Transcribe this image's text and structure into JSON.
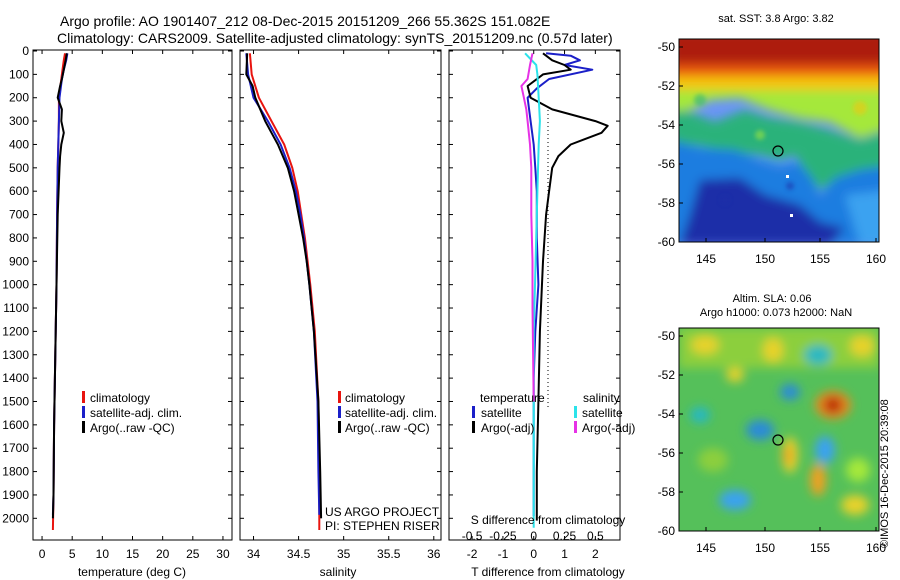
{
  "header": {
    "title_line1": "Argo profile: AO 1901407_212 08-Dec-2015 20151209_266 55.362S 151.082E",
    "title_line2": "Climatology: CARS2009. Satellite-adjusted climatology: synTS_20151209.nc (0.57d later)"
  },
  "colors": {
    "climatology": "#e8140f",
    "satellite": "#1b1fc8",
    "argo": "#000000",
    "satellite_diff_s": "#2be3ea",
    "argo_diff_s": "#e632e6"
  },
  "chart_data": [
    {
      "type": "line",
      "id": "temperature",
      "xlabel": "temperature (deg C)",
      "ylabel": "",
      "xlim": [
        -1.5,
        31.5
      ],
      "ylim": [
        2080,
        0
      ],
      "xticks": [
        0,
        5,
        10,
        15,
        20,
        25,
        30
      ],
      "xticklabels": [
        "0",
        "5",
        "10",
        "15",
        "20",
        "25",
        "30"
      ],
      "yticks": [
        0,
        100,
        200,
        300,
        400,
        500,
        600,
        700,
        800,
        900,
        1000,
        1100,
        1200,
        1300,
        1400,
        1500,
        1600,
        1700,
        1800,
        1900,
        2000
      ],
      "yticklabels": [
        "0",
        "100",
        "200",
        "300",
        "400",
        "500",
        "600",
        "700",
        "800",
        "900",
        "1000",
        "1100",
        "1200",
        "1300",
        "1400",
        "1500",
        "1600",
        "1700",
        "1800",
        "1900",
        "2000"
      ],
      "legend": [
        {
          "label": "climatology",
          "color_key": "climatology"
        },
        {
          "label": "satellite-adj. clim.",
          "color_key": "satellite"
        },
        {
          "label": "Argo(..raw -QC)",
          "color_key": "argo"
        }
      ],
      "series": [
        {
          "color_key": "climatology",
          "y": [
            10,
            40,
            80,
            120,
            200,
            300,
            400,
            500,
            700,
            1000,
            1300,
            1600,
            1900,
            2050
          ],
          "x": [
            3.8,
            3.6,
            3.4,
            3.2,
            2.8,
            2.8,
            2.7,
            2.6,
            2.5,
            2.4,
            2.2,
            2.0,
            1.9,
            1.8
          ]
        },
        {
          "color_key": "satellite",
          "y": [
            10,
            40,
            80,
            120,
            200,
            300,
            400,
            500,
            700,
            1000,
            1300,
            1600,
            1900,
            1985
          ],
          "x": [
            4.2,
            4.0,
            3.6,
            3.3,
            2.9,
            2.8,
            2.7,
            2.6,
            2.5,
            2.4,
            2.2,
            2.0,
            1.9,
            1.8
          ]
        },
        {
          "color_key": "argo",
          "y": [
            10,
            40,
            80,
            120,
            150,
            200,
            250,
            300,
            350,
            400,
            450,
            500,
            700,
            1000,
            1300,
            1600,
            1900,
            2000
          ],
          "x": [
            4.1,
            3.9,
            3.6,
            3.3,
            3.0,
            2.6,
            3.3,
            3.2,
            3.6,
            3.2,
            3.0,
            2.9,
            2.6,
            2.4,
            2.2,
            2.0,
            1.9,
            1.8
          ]
        }
      ]
    },
    {
      "type": "line",
      "id": "salinity",
      "xlabel": "salinity",
      "ylabel": "",
      "xlim": [
        33.85,
        36.08
      ],
      "ylim": [
        2080,
        0
      ],
      "xticks": [
        34,
        34.5,
        35,
        35.5,
        36
      ],
      "xticklabels": [
        "34",
        "34.5",
        "35",
        "35.5",
        "36"
      ],
      "legend": [
        {
          "label": "climatology",
          "color_key": "climatology"
        },
        {
          "label": "satellite-adj. clim.",
          "color_key": "satellite"
        },
        {
          "label": "Argo(..raw -QC)",
          "color_key": "argo"
        }
      ],
      "annotations": [
        "US ARGO PROJECT",
        "PI: STEPHEN RISER"
      ],
      "series": [
        {
          "color_key": "climatology",
          "y": [
            10,
            100,
            200,
            300,
            400,
            500,
            600,
            700,
            800,
            900,
            1000,
            1200,
            1500,
            1800,
            2050
          ],
          "x": [
            33.96,
            33.98,
            34.06,
            34.2,
            34.34,
            34.43,
            34.49,
            34.53,
            34.57,
            34.6,
            34.63,
            34.68,
            34.72,
            34.73,
            34.73
          ]
        },
        {
          "color_key": "satellite",
          "y": [
            10,
            100,
            200,
            300,
            400,
            500,
            600,
            700,
            800,
            900,
            1000,
            1200,
            1500,
            1800,
            1985
          ],
          "x": [
            33.92,
            33.94,
            34.0,
            34.16,
            34.3,
            34.4,
            34.47,
            34.52,
            34.56,
            34.59,
            34.62,
            34.67,
            34.71,
            34.72,
            34.73
          ]
        },
        {
          "color_key": "argo",
          "y": [
            10,
            100,
            150,
            200,
            300,
            350,
            400,
            500,
            600,
            700,
            800,
            900,
            1000,
            1200,
            1500,
            1800,
            2000
          ],
          "x": [
            33.93,
            33.92,
            33.99,
            34.02,
            34.13,
            34.2,
            34.27,
            34.38,
            34.45,
            34.5,
            34.55,
            34.59,
            34.62,
            34.67,
            34.72,
            34.74,
            34.75
          ]
        }
      ]
    },
    {
      "type": "line",
      "id": "difference",
      "xlabel": "T difference from climatology",
      "xlabel_top": "S difference from climatology",
      "xlim": [
        -2.75,
        2.8
      ],
      "ylim": [
        2080,
        0
      ],
      "xticks": [
        -2,
        -1,
        0,
        1,
        2
      ],
      "xticklabels": [
        "-2",
        "-1",
        "0",
        "1",
        "2"
      ],
      "xticks_s": [
        -0.5,
        -0.25,
        0,
        0.25,
        0.5
      ],
      "xticklabels_s": [
        "-0.5",
        "-0.25",
        "0",
        "0.25",
        "0.5"
      ],
      "s_scale": 4,
      "legend_left_title": "temperature",
      "legend_right_title": "salinity",
      "legend": [
        {
          "label": "satellite",
          "color_key": "satellite",
          "group": "temperature"
        },
        {
          "label": "Argo(-adj)",
          "color_key": "argo",
          "group": "temperature"
        },
        {
          "label": "satellite",
          "color_key": "satellite_diff_s",
          "group": "salinity"
        },
        {
          "label": "Argo(-adj)",
          "color_key": "argo_diff_s",
          "group": "salinity"
        }
      ],
      "series": [
        {
          "color_key": "satellite",
          "label": "T satellite",
          "y": [
            10,
            20,
            40,
            60,
            80,
            120,
            160,
            200,
            300,
            400,
            500,
            600,
            800,
            1000,
            1200,
            1400,
            1600,
            1900,
            1990
          ],
          "x": [
            0.4,
            1.2,
            1.5,
            1.0,
            1.9,
            0.5,
            0.1,
            -0.2,
            -0.1,
            0.0,
            0.05,
            0.1,
            0.1,
            0.15,
            0.05,
            0.0,
            0.0,
            0.0,
            0.0
          ]
        },
        {
          "color_key": "argo",
          "label": "T Argo",
          "y": [
            10,
            40,
            60,
            80,
            100,
            150,
            200,
            250,
            300,
            320,
            350,
            380,
            400,
            450,
            500,
            600,
            700,
            900,
            1200,
            1500,
            1800,
            2010
          ],
          "x": [
            0.3,
            0.6,
            1.0,
            1.2,
            0.3,
            -0.2,
            -0.1,
            0.6,
            2.0,
            2.4,
            2.2,
            1.6,
            1.2,
            0.8,
            0.6,
            0.5,
            0.4,
            0.3,
            0.2,
            0.15,
            0.1,
            0.1
          ]
        },
        {
          "color_key": "satellite_diff_s",
          "label": "S satellite",
          "y": [
            10,
            60,
            100,
            200,
            300,
            400,
            600,
            800,
            1000,
            1200,
            1500,
            1800,
            2040
          ],
          "x": [
            -0.07,
            0.02,
            0.03,
            0.04,
            0.05,
            0.04,
            0.03,
            0.02,
            0.01,
            0.0,
            0.0,
            0.0,
            0.0
          ]
        },
        {
          "color_key": "argo_diff_s",
          "label": "S Argo",
          "y": [
            10,
            60,
            120,
            150,
            200,
            250,
            300,
            400,
            500,
            700,
            900,
            1100,
            1300,
            1500
          ],
          "x": [
            -0.01,
            -0.03,
            -0.05,
            -0.1,
            -0.08,
            -0.06,
            -0.05,
            -0.03,
            -0.02,
            -0.02,
            -0.01,
            -0.01,
            -0.005,
            0.0
          ]
        }
      ]
    }
  ],
  "maps": [
    {
      "id": "sst-map",
      "title_lines": [
        "sat. SST: 3.8 Argo: 3.82"
      ],
      "xticks": [
        "145",
        "150",
        "155",
        "160"
      ],
      "yticks": [
        "-50",
        "-52",
        "-54",
        "-56",
        "-58",
        "-60"
      ]
    },
    {
      "id": "sla-map",
      "title_lines": [
        "Altim. SLA: 0.06",
        "Argo h1000: 0.073 h2000: NaN"
      ],
      "xticks": [
        "145",
        "150",
        "155",
        "160"
      ],
      "yticks": [
        "-50",
        "-52",
        "-54",
        "-56",
        "-58",
        "-60"
      ],
      "side_text": "©IMOS 16-Dec-2015 20:39:08"
    }
  ]
}
